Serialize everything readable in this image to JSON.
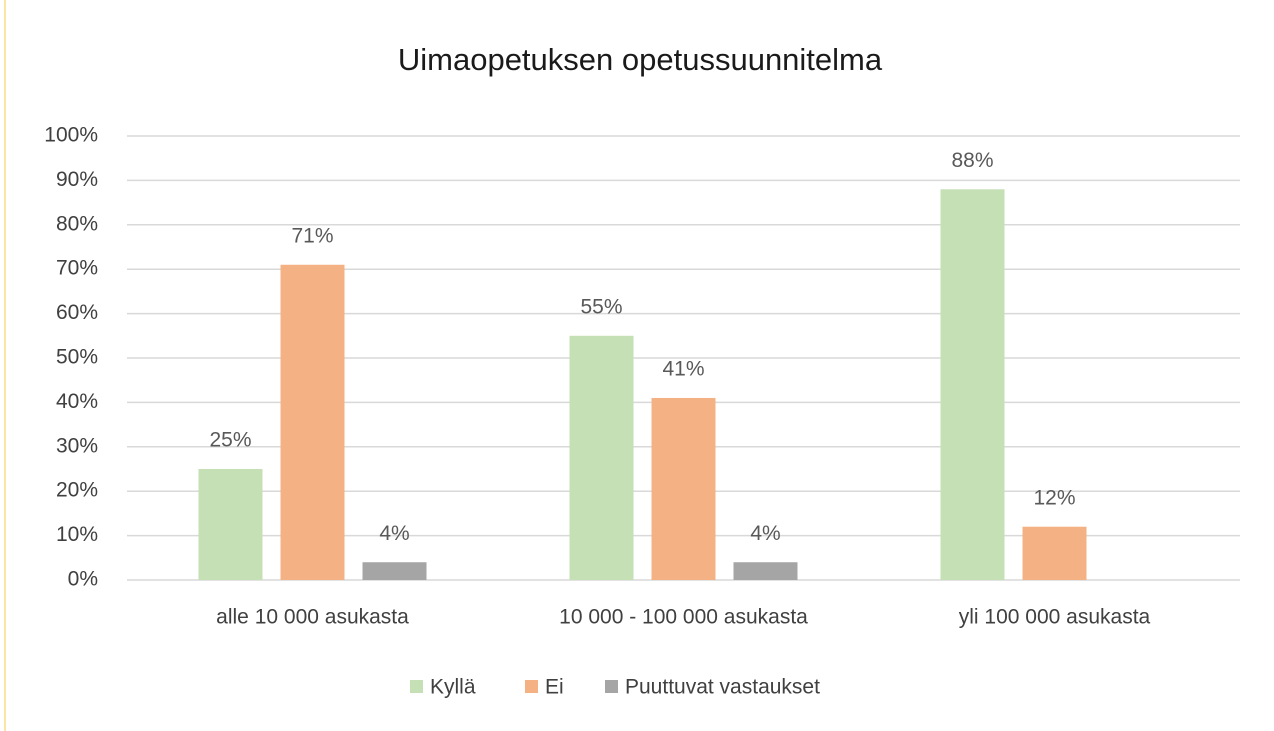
{
  "chart_data": {
    "type": "bar",
    "title": "Uimaopetuksen opetussuunnitelma",
    "categories": [
      "alle 10 000 asukasta",
      "10 000 - 100 000 asukasta",
      "yli 100 000 asukasta"
    ],
    "series": [
      {
        "name": "Kyllä",
        "color": "#c5e0b4",
        "values": [
          25,
          55,
          88
        ],
        "value_labels": [
          "25%",
          "55%",
          "88%"
        ]
      },
      {
        "name": "Ei",
        "color": "#f4b183",
        "values": [
          71,
          41,
          12
        ],
        "value_labels": [
          "71%",
          "41%",
          "12%"
        ]
      },
      {
        "name": "Puuttuvat vastaukset",
        "color": "#a5a5a5",
        "values": [
          4,
          4,
          null
        ],
        "value_labels": [
          "4%",
          "4%",
          null
        ]
      }
    ],
    "ylim": [
      0,
      100
    ],
    "yticks": [
      {
        "value": 0,
        "label": "0%"
      },
      {
        "value": 10,
        "label": "10%"
      },
      {
        "value": 20,
        "label": "20%"
      },
      {
        "value": 30,
        "label": "30%"
      },
      {
        "value": 40,
        "label": "40%"
      },
      {
        "value": 50,
        "label": "50%"
      },
      {
        "value": 60,
        "label": "60%"
      },
      {
        "value": 70,
        "label": "70%"
      },
      {
        "value": 80,
        "label": "80%"
      },
      {
        "value": 90,
        "label": "90%"
      },
      {
        "value": 100,
        "label": "100%"
      }
    ],
    "grid": true,
    "legend": "bottom"
  }
}
